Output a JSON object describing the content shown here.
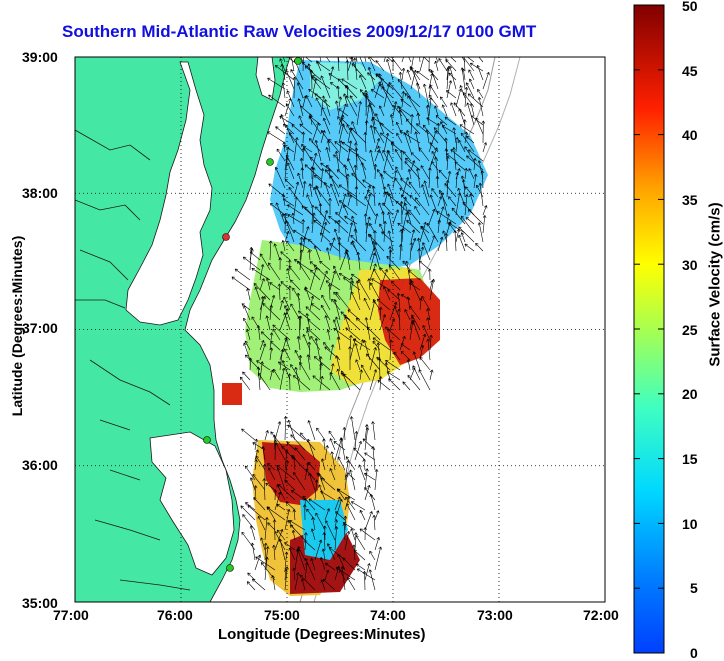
{
  "title": "Southern Mid-Atlantic Raw Velocities 2009/12/17 0100 GMT",
  "x_axis": {
    "label": "Longitude (Degrees:Minutes)",
    "ticks": [
      "77:00",
      "76:00",
      "75:00",
      "74:00",
      "73:00",
      "72:00"
    ]
  },
  "y_axis": {
    "label": "Latitude (Degrees:Minutes)",
    "ticks": [
      "39:00",
      "38:00",
      "37:00",
      "36:00",
      "35:00"
    ]
  },
  "colorbar": {
    "label": "Surface Velocity (cm/s)",
    "ticks": [
      "50",
      "45",
      "40",
      "35",
      "30",
      "25",
      "20",
      "15",
      "10",
      "5",
      "0"
    ],
    "range": [
      0,
      50
    ],
    "colormap": "jet"
  },
  "colors": {
    "land": "#44e8a4",
    "title": "#1010e0",
    "station": "#22cc22",
    "station_alt": "#e03030"
  },
  "map": {
    "lon_range": [
      -77,
      -72
    ],
    "lat_range": [
      35,
      39
    ],
    "grid": "dotted"
  }
}
